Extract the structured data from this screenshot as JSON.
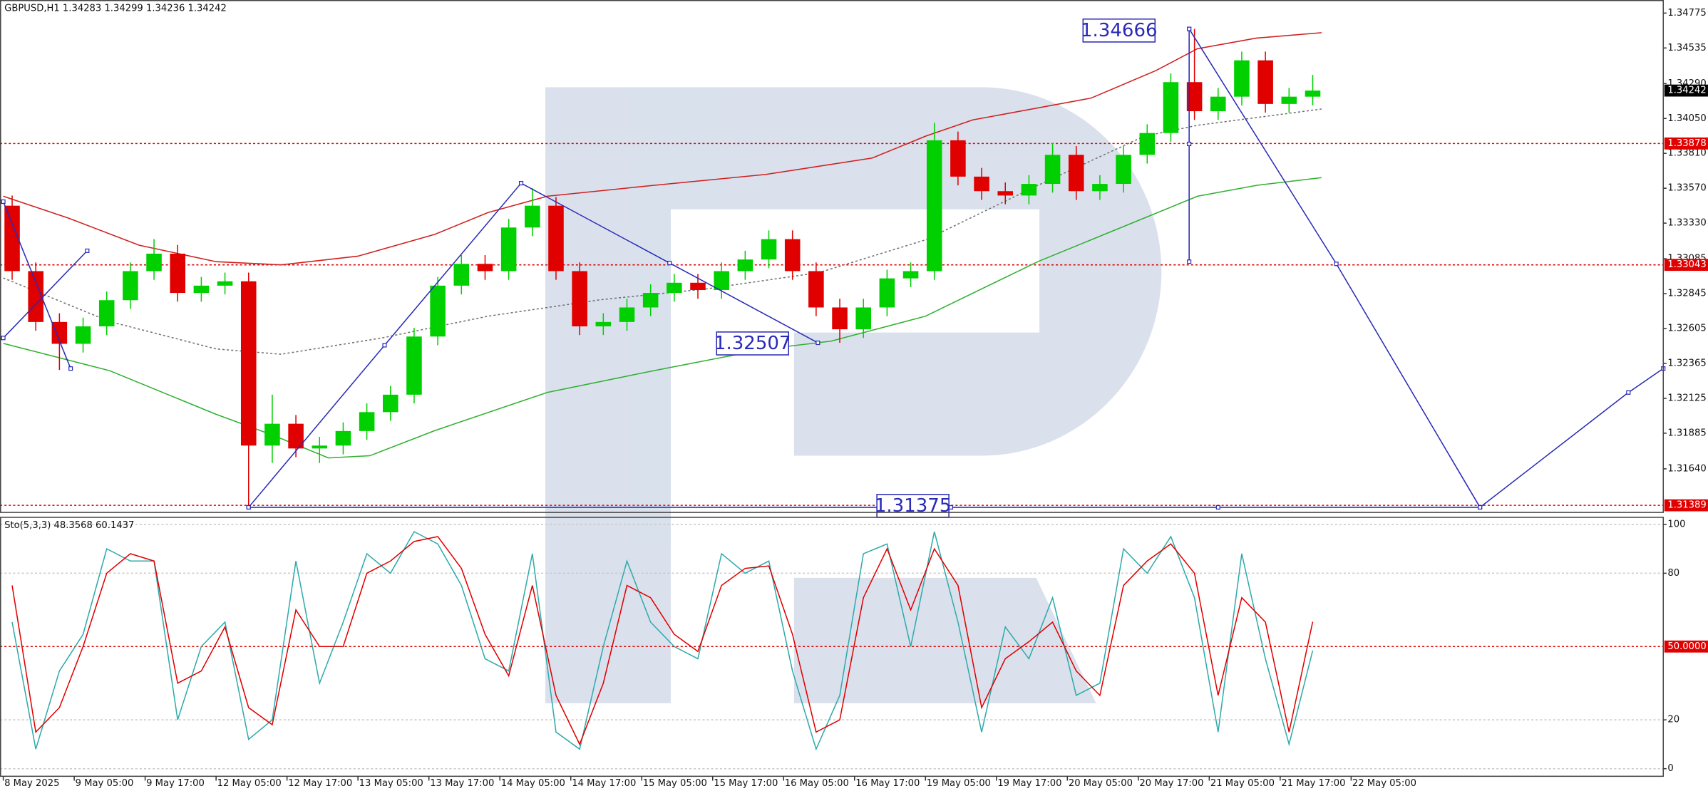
{
  "chart_data": [
    {
      "type": "candlestick",
      "title": "GBPUSD,H1  1.34283 1.34299 1.34236 1.34242",
      "xlim": [
        -0.55,
        280.8
      ],
      "ylim": [
        1.3134,
        1.34865
      ],
      "yticks": [
        1.34775,
        1.34535,
        {
          "value": 1.3429,
          "label": "1.34290"
        },
        {
          "value": 1.3405,
          "label": "1.34050"
        },
        {
          "value": 1.3381,
          "label": "1.33810"
        },
        {
          "value": 1.3357,
          "label": "1.33570"
        },
        {
          "value": 1.3333,
          "label": "1.33330"
        },
        1.33085,
        1.32845,
        1.32605,
        1.32365,
        1.32125,
        1.31885,
        {
          "value": 1.3164,
          "label": "1.31640"
        }
      ],
      "up_color": "#00d000",
      "down_color": "#e00000",
      "x": [
        1.5,
        5.5,
        9.5,
        13.5,
        17.5,
        21.5,
        25.5,
        29.5,
        33.5,
        37.5,
        41.5,
        45.5,
        49.5,
        53.5,
        57.5,
        61.5,
        65.5,
        69.5,
        73.5,
        77.5,
        81.5,
        85.5,
        89.5,
        93.5,
        97.5,
        101.5,
        105.5,
        109.5,
        113.5,
        117.5,
        121.5,
        125.5,
        129.5,
        133.5,
        137.5,
        141.5,
        145.5,
        149.5,
        153.5,
        157.5,
        161.5,
        165.5,
        169.5,
        173.5,
        177.5,
        181.5,
        185.5,
        189.5,
        193.5,
        197.5,
        201.5,
        205.5,
        209.5,
        213.5,
        217.5,
        221.5
      ],
      "open": [
        1.3345,
        1.33,
        1.3265,
        1.325,
        1.3262,
        1.328,
        1.33,
        1.3312,
        1.3285,
        1.329,
        1.3293,
        1.318,
        1.3195,
        1.3178,
        1.318,
        1.319,
        1.3203,
        1.3215,
        1.3255,
        1.329,
        1.3305,
        1.33,
        1.333,
        1.3345,
        1.33,
        1.3262,
        1.3265,
        1.3275,
        1.3285,
        1.3292,
        1.3287,
        1.33,
        1.3308,
        1.3322,
        1.33,
        1.3275,
        1.326,
        1.3275,
        1.3295,
        1.33,
        1.339,
        1.3365,
        1.3355,
        1.3352,
        1.336,
        1.338,
        1.3355,
        1.336,
        1.338,
        1.3395,
        1.343,
        1.341,
        1.342,
        1.3445,
        1.3415,
        1.342
      ],
      "high": [
        1.3352,
        1.3306,
        1.3271,
        1.3268,
        1.3286,
        1.3306,
        1.3322,
        1.3318,
        1.3296,
        1.3299,
        1.3299,
        1.3215,
        1.3201,
        1.3186,
        1.3196,
        1.3209,
        1.3221,
        1.3261,
        1.3296,
        1.3311,
        1.3311,
        1.3336,
        1.3357,
        1.3351,
        1.3306,
        1.3271,
        1.3281,
        1.3291,
        1.3298,
        1.3298,
        1.3306,
        1.3314,
        1.3328,
        1.3328,
        1.3306,
        1.3281,
        1.3281,
        1.3301,
        1.3306,
        1.3402,
        1.3396,
        1.3371,
        1.3361,
        1.3366,
        1.3388,
        1.3386,
        1.3366,
        1.3386,
        1.3401,
        1.3436,
        1.34666,
        1.3426,
        1.3451,
        1.3451,
        1.3426,
        1.3435
      ],
      "low": [
        1.3294,
        1.3259,
        1.3232,
        1.3244,
        1.3256,
        1.3274,
        1.3294,
        1.3279,
        1.3279,
        1.3284,
        1.31389,
        1.3168,
        1.3172,
        1.3168,
        1.3174,
        1.3184,
        1.3197,
        1.3209,
        1.3249,
        1.3284,
        1.3294,
        1.3294,
        1.3324,
        1.3294,
        1.3256,
        1.3256,
        1.3259,
        1.3269,
        1.3279,
        1.3281,
        1.3281,
        1.3294,
        1.3302,
        1.3294,
        1.3269,
        1.32507,
        1.3254,
        1.3269,
        1.3289,
        1.3294,
        1.3359,
        1.3349,
        1.3346,
        1.3346,
        1.3354,
        1.3349,
        1.3349,
        1.3354,
        1.3374,
        1.3389,
        1.3404,
        1.3404,
        1.3414,
        1.3409,
        1.3409,
        1.3414
      ],
      "close": [
        1.33,
        1.3265,
        1.325,
        1.3262,
        1.328,
        1.33,
        1.3312,
        1.3285,
        1.329,
        1.3293,
        1.318,
        1.3195,
        1.3178,
        1.318,
        1.319,
        1.3203,
        1.3215,
        1.3255,
        1.329,
        1.3305,
        1.33,
        1.333,
        1.3345,
        1.33,
        1.3262,
        1.3265,
        1.3275,
        1.3285,
        1.3292,
        1.3287,
        1.33,
        1.3308,
        1.3322,
        1.33,
        1.3275,
        1.326,
        1.3275,
        1.3295,
        1.33,
        1.339,
        1.3365,
        1.3355,
        1.3352,
        1.336,
        1.338,
        1.3355,
        1.336,
        1.338,
        1.3395,
        1.343,
        1.341,
        1.342,
        1.3445,
        1.3415,
        1.342,
        1.34242
      ],
      "series": [
        {
          "color": "#d02020",
          "style": "solid",
          "x": [
            0,
            11,
            23,
            36,
            47,
            60,
            73,
            82,
            92,
            110,
            129,
            147,
            156,
            164,
            184,
            195,
            202,
            212,
            223
          ],
          "values": [
            1.33515,
            1.33365,
            1.33178,
            1.33065,
            1.33043,
            1.33103,
            1.33253,
            1.33403,
            1.33515,
            1.3359,
            1.33665,
            1.33778,
            1.33928,
            1.3404,
            1.3419,
            1.3438,
            1.3453,
            1.34603,
            1.3464
          ]
        },
        {
          "color": "#30b030",
          "style": "solid",
          "x": [
            0,
            18,
            36,
            46,
            55,
            62,
            73,
            92,
            110,
            129,
            140,
            156,
            175,
            193,
            202,
            212,
            223
          ],
          "values": [
            1.32503,
            1.32315,
            1.32015,
            1.31865,
            1.31715,
            1.3173,
            1.31903,
            1.32165,
            1.32315,
            1.32465,
            1.32518,
            1.3269,
            1.33065,
            1.33365,
            1.33515,
            1.3359,
            1.33643
          ]
        },
        {
          "color": "#707070",
          "style": "dotted",
          "x": [
            0,
            18,
            36,
            47,
            64,
            82,
            101,
            119,
            138,
            156,
            175,
            193,
            202,
            223
          ],
          "values": [
            1.32953,
            1.32653,
            1.32465,
            1.32428,
            1.3254,
            1.3269,
            1.32803,
            1.32878,
            1.3299,
            1.33215,
            1.3359,
            1.33928,
            1.34003,
            1.34115
          ]
        }
      ],
      "lines_color": "#2a2ab8",
      "lines": [
        {
          "x": [
            0,
            11.4
          ],
          "values": [
            1.33478,
            1.3233
          ]
        },
        {
          "x": [
            0,
            14.2
          ],
          "values": [
            1.3254,
            1.3314
          ]
        },
        {
          "x": [
            41.5,
            64.5,
            87.6,
            112.7,
            137.8
          ],
          "values": [
            1.31375,
            1.3249,
            1.33605,
            1.33056,
            1.32507
          ]
        },
        {
          "x": [
            200.6,
            200.6,
            200.6
          ],
          "values": [
            1.34666,
            1.33875,
            1.33065
          ]
        },
        {
          "x": [
            200.6,
            225.5,
            249.8,
            274.9,
            280.8
          ],
          "values": [
            1.34666,
            1.3305,
            1.31375,
            1.32165,
            1.3233
          ]
        },
        {
          "x": [
            41.5,
            160.3,
            205.5,
            249.8
          ],
          "values": [
            1.31375,
            1.31375,
            1.31375,
            1.31375
          ]
        }
      ],
      "annotations": [
        1.34666,
        1.32507,
        1.31375
      ],
      "levels": [
        1.33878,
        1.33043,
        1.31389
      ],
      "level_color": "#e00000",
      "last_price": 1.34242
    },
    {
      "type": "line",
      "title": "Sto(5,3,3) 48.3568 60.1437",
      "xlim": [
        -0.55,
        280.8
      ],
      "ylim": [
        -3.1,
        103.1
      ],
      "yticks": [
        100,
        80,
        20,
        0
      ],
      "grid": true,
      "levels": [
        {
          "value": 50,
          "label": "50.0000"
        }
      ],
      "level_color": "#e00000",
      "xticks": [
        {
          "value": 0,
          "label": "8 May 2025"
        },
        {
          "value": 12,
          "label": "9 May 05:00"
        },
        {
          "value": 24,
          "label": "9 May 17:00"
        },
        {
          "value": 36,
          "label": "12 May 05:00"
        },
        {
          "value": 48,
          "label": "12 May 17:00"
        },
        {
          "value": 60,
          "label": "13 May 05:00"
        },
        {
          "value": 72,
          "label": "13 May 17:00"
        },
        {
          "value": 84,
          "label": "14 May 05:00"
        },
        {
          "value": 96,
          "label": "14 May 17:00"
        },
        {
          "value": 108,
          "label": "15 May 05:00"
        },
        {
          "value": 120,
          "label": "15 May 17:00"
        },
        {
          "value": 132,
          "label": "16 May 05:00"
        },
        {
          "value": 144,
          "label": "16 May 17:00"
        },
        {
          "value": 156,
          "label": "19 May 05:00"
        },
        {
          "value": 168,
          "label": "19 May 17:00"
        },
        {
          "value": 180,
          "label": "20 May 05:00"
        },
        {
          "value": 192,
          "label": "20 May 17:00"
        },
        {
          "value": 204,
          "label": "21 May 05:00"
        },
        {
          "value": 216,
          "label": "21 May 17:00"
        },
        {
          "value": 228,
          "label": "22 May 05:00"
        }
      ],
      "x": [
        1.5,
        5.5,
        9.5,
        13.5,
        17.5,
        21.5,
        25.5,
        29.5,
        33.5,
        37.5,
        41.5,
        45.5,
        49.5,
        53.5,
        57.5,
        61.5,
        65.5,
        69.5,
        73.5,
        77.5,
        81.5,
        85.5,
        89.5,
        93.5,
        97.5,
        101.5,
        105.5,
        109.5,
        113.5,
        117.5,
        121.5,
        125.5,
        129.5,
        133.5,
        137.5,
        141.5,
        145.5,
        149.5,
        153.5,
        157.5,
        161.5,
        165.5,
        169.5,
        173.5,
        177.5,
        181.5,
        185.5,
        189.5,
        193.5,
        197.5,
        201.5,
        205.5,
        209.5,
        213.5,
        217.5,
        221.5
      ],
      "series": [
        {
          "color": "#30aaaa",
          "style": "solid",
          "values": [
            60,
            8,
            40,
            55,
            90,
            85,
            85,
            20,
            50,
            60,
            12,
            20,
            85,
            35,
            60,
            88,
            80,
            97,
            92,
            75,
            45,
            40,
            88,
            15,
            8,
            50,
            85,
            60,
            50,
            45,
            88,
            80,
            85,
            40,
            8,
            30,
            88,
            92,
            50,
            97,
            60,
            15,
            58,
            45,
            70,
            30,
            35,
            90,
            80,
            95,
            70,
            15,
            88,
            45,
            10,
            48.3568
          ]
        },
        {
          "color": "#e00000",
          "style": "solid",
          "values": [
            75,
            15,
            25,
            50,
            80,
            88,
            85,
            35,
            40,
            58,
            25,
            18,
            65,
            50,
            50,
            80,
            85,
            93,
            95,
            82,
            55,
            38,
            75,
            30,
            10,
            35,
            75,
            70,
            55,
            48,
            75,
            82,
            83,
            55,
            15,
            20,
            70,
            90,
            65,
            90,
            75,
            25,
            45,
            52,
            60,
            40,
            30,
            75,
            85,
            92,
            80,
            30,
            70,
            60,
            15,
            60.1437
          ]
        }
      ]
    }
  ]
}
